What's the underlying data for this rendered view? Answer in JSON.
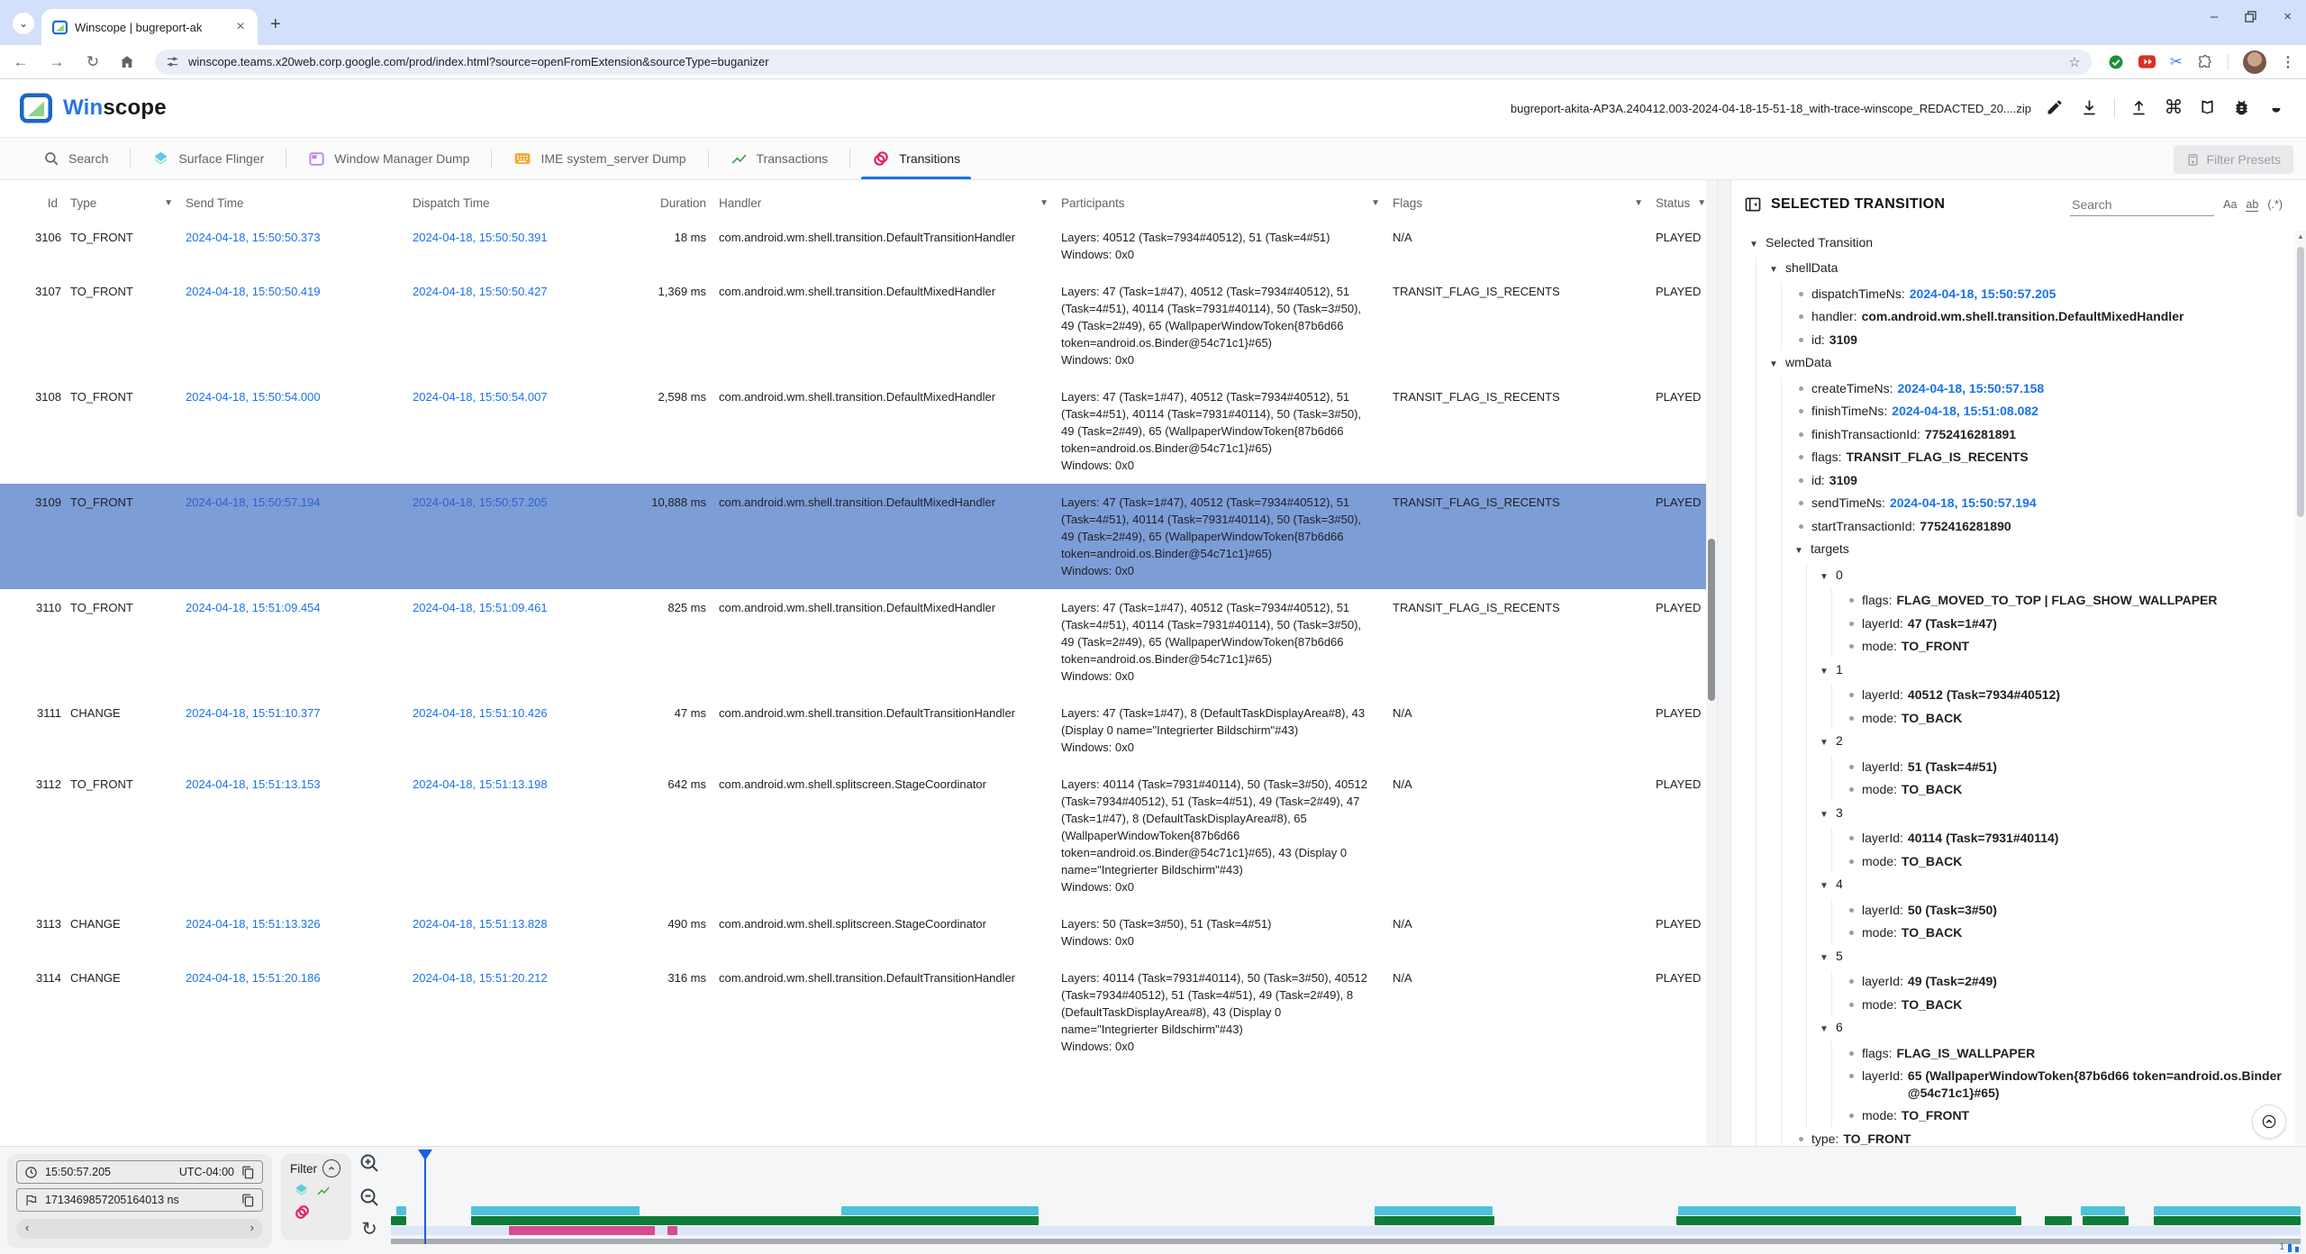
{
  "browser": {
    "tab_title": "Winscope | bugreport-ak",
    "url": "winscope.teams.x20web.corp.google.com/prod/index.html?source=openFromExtension&sourceType=buganizer"
  },
  "app_header": {
    "name_win": "Win",
    "name_scope": "scope",
    "file_name": "bugreport-akita-AP3A.240412.003-2024-04-18-15-51-18_with-trace-winscope_REDACTED_20....zip"
  },
  "trace_tabs": {
    "items": [
      {
        "label": "Search"
      },
      {
        "label": "Surface Flinger"
      },
      {
        "label": "Window Manager Dump"
      },
      {
        "label": "IME system_server Dump"
      },
      {
        "label": "Transactions"
      },
      {
        "label": "Transitions"
      }
    ],
    "filter_presets": "Filter Presets"
  },
  "table": {
    "headers": {
      "id": "Id",
      "type": "Type",
      "send_time": "Send Time",
      "dispatch_time": "Dispatch Time",
      "duration": "Duration",
      "handler": "Handler",
      "participants": "Participants",
      "flags": "Flags",
      "status": "Status"
    },
    "rows": [
      {
        "id": "3106",
        "type": "TO_FRONT",
        "send_time": "2024-04-18, 15:50:50.373",
        "dispatch_time": "2024-04-18, 15:50:50.391",
        "duration": "18 ms",
        "handler": "com.android.wm.shell.transition.DefaultTransitionHandler",
        "participants": "Layers: 40512 (Task=7934#40512), 51 (Task=4#51)\nWindows: 0x0",
        "flags": "N/A",
        "status": "PLAYED"
      },
      {
        "id": "3107",
        "type": "TO_FRONT",
        "send_time": "2024-04-18, 15:50:50.419",
        "dispatch_time": "2024-04-18, 15:50:50.427",
        "duration": "1,369 ms",
        "handler": "com.android.wm.shell.transition.DefaultMixedHandler",
        "participants": "Layers: 47 (Task=1#47), 40512 (Task=7934#40512), 51 (Task=4#51), 40114 (Task=7931#40114), 50 (Task=3#50), 49 (Task=2#49), 65 (WallpaperWindowToken{87b6d66 token=android.os.Binder@54c71c1}#65)\nWindows: 0x0",
        "flags": "TRANSIT_FLAG_IS_RECENTS",
        "status": "PLAYED"
      },
      {
        "id": "3108",
        "type": "TO_FRONT",
        "send_time": "2024-04-18, 15:50:54.000",
        "dispatch_time": "2024-04-18, 15:50:54.007",
        "duration": "2,598 ms",
        "handler": "com.android.wm.shell.transition.DefaultMixedHandler",
        "participants": "Layers: 47 (Task=1#47), 40512 (Task=7934#40512), 51 (Task=4#51), 40114 (Task=7931#40114), 50 (Task=3#50), 49 (Task=2#49), 65 (WallpaperWindowToken{87b6d66 token=android.os.Binder@54c71c1}#65)\nWindows: 0x0",
        "flags": "TRANSIT_FLAG_IS_RECENTS",
        "status": "PLAYED"
      },
      {
        "id": "3109",
        "type": "TO_FRONT",
        "send_time": "2024-04-18, 15:50:57.194",
        "dispatch_time": "2024-04-18, 15:50:57.205",
        "duration": "10,888 ms",
        "handler": "com.android.wm.shell.transition.DefaultMixedHandler",
        "participants": "Layers: 47 (Task=1#47), 40512 (Task=7934#40512), 51 (Task=4#51), 40114 (Task=7931#40114), 50 (Task=3#50), 49 (Task=2#49), 65 (WallpaperWindowToken{87b6d66 token=android.os.Binder@54c71c1}#65)\nWindows: 0x0",
        "flags": "TRANSIT_FLAG_IS_RECENTS",
        "status": "PLAYED",
        "selected": true
      },
      {
        "id": "3110",
        "type": "TO_FRONT",
        "send_time": "2024-04-18, 15:51:09.454",
        "dispatch_time": "2024-04-18, 15:51:09.461",
        "duration": "825 ms",
        "handler": "com.android.wm.shell.transition.DefaultMixedHandler",
        "participants": "Layers: 47 (Task=1#47), 40512 (Task=7934#40512), 51 (Task=4#51), 40114 (Task=7931#40114), 50 (Task=3#50), 49 (Task=2#49), 65 (WallpaperWindowToken{87b6d66 token=android.os.Binder@54c71c1}#65)\nWindows: 0x0",
        "flags": "TRANSIT_FLAG_IS_RECENTS",
        "status": "PLAYED"
      },
      {
        "id": "3111",
        "type": "CHANGE",
        "send_time": "2024-04-18, 15:51:10.377",
        "dispatch_time": "2024-04-18, 15:51:10.426",
        "duration": "47 ms",
        "handler": "com.android.wm.shell.transition.DefaultTransitionHandler",
        "participants": "Layers: 47 (Task=1#47), 8 (DefaultTaskDisplayArea#8), 43 (Display 0 name=\"Integrierter Bildschirm\"#43)\nWindows: 0x0",
        "flags": "N/A",
        "status": "PLAYED"
      },
      {
        "id": "3112",
        "type": "TO_FRONT",
        "send_time": "2024-04-18, 15:51:13.153",
        "dispatch_time": "2024-04-18, 15:51:13.198",
        "duration": "642 ms",
        "handler": "com.android.wm.shell.splitscreen.StageCoordinator",
        "participants": "Layers: 40114 (Task=7931#40114), 50 (Task=3#50), 40512 (Task=7934#40512), 51 (Task=4#51), 49 (Task=2#49), 47 (Task=1#47), 8 (DefaultTaskDisplayArea#8), 65 (WallpaperWindowToken{87b6d66 token=android.os.Binder@54c71c1}#65), 43 (Display 0 name=\"Integrierter Bildschirm\"#43)\nWindows: 0x0",
        "flags": "N/A",
        "status": "PLAYED"
      },
      {
        "id": "3113",
        "type": "CHANGE",
        "send_time": "2024-04-18, 15:51:13.326",
        "dispatch_time": "2024-04-18, 15:51:13.828",
        "duration": "490 ms",
        "handler": "com.android.wm.shell.splitscreen.StageCoordinator",
        "participants": "Layers: 50 (Task=3#50), 51 (Task=4#51)\nWindows: 0x0",
        "flags": "N/A",
        "status": "PLAYED"
      },
      {
        "id": "3114",
        "type": "CHANGE",
        "send_time": "2024-04-18, 15:51:20.186",
        "dispatch_time": "2024-04-18, 15:51:20.212",
        "duration": "316 ms",
        "handler": "com.android.wm.shell.transition.DefaultTransitionHandler",
        "participants": "Layers: 40114 (Task=7931#40114), 50 (Task=3#50), 40512 (Task=7934#40512), 51 (Task=4#51), 49 (Task=2#49), 8 (DefaultTaskDisplayArea#8), 43 (Display 0 name=\"Integrierter Bildschirm\"#43)\nWindows: 0x0",
        "flags": "N/A",
        "status": "PLAYED"
      }
    ]
  },
  "panel": {
    "title": "SELECTED TRANSITION",
    "search_placeholder": "Search",
    "match_case": "Aa",
    "match_word": "ab",
    "regex": "(.*)",
    "tree": [
      {
        "label": "Selected Transition"
      },
      {
        "label": "shellData"
      },
      {
        "key": "dispatchTimeNs:",
        "value": "2024-04-18, 15:50:57.205",
        "blue": true
      },
      {
        "key": "handler:",
        "value": "com.android.wm.shell.transition.DefaultMixedHandler"
      },
      {
        "key": "id:",
        "value": "3109"
      },
      {
        "label": "wmData"
      },
      {
        "key": "createTimeNs:",
        "value": "2024-04-18, 15:50:57.158",
        "blue": true
      },
      {
        "key": "finishTimeNs:",
        "value": "2024-04-18, 15:51:08.082",
        "blue": true
      },
      {
        "key": "finishTransactionId:",
        "value": "7752416281891"
      },
      {
        "key": "flags:",
        "value": "TRANSIT_FLAG_IS_RECENTS"
      },
      {
        "key": "id:",
        "value": "3109"
      },
      {
        "key": "sendTimeNs:",
        "value": "2024-04-18, 15:50:57.194",
        "blue": true
      },
      {
        "key": "startTransactionId:",
        "value": "7752416281890"
      },
      {
        "label": "targets"
      },
      {
        "label": "0"
      },
      {
        "key": "flags:",
        "value": "FLAG_MOVED_TO_TOP | FLAG_SHOW_WALLPAPER"
      },
      {
        "key": "layerId:",
        "value": "47 (Task=1#47)"
      },
      {
        "key": "mode:",
        "value": "TO_FRONT"
      },
      {
        "label": "1"
      },
      {
        "key": "layerId:",
        "value": "40512 (Task=7934#40512)"
      },
      {
        "key": "mode:",
        "value": "TO_BACK"
      },
      {
        "label": "2"
      },
      {
        "key": "layerId:",
        "value": "51 (Task=4#51)"
      },
      {
        "key": "mode:",
        "value": "TO_BACK"
      },
      {
        "label": "3"
      },
      {
        "key": "layerId:",
        "value": "40114 (Task=7931#40114)"
      },
      {
        "key": "mode:",
        "value": "TO_BACK"
      },
      {
        "label": "4"
      },
      {
        "key": "layerId:",
        "value": "50 (Task=3#50)"
      },
      {
        "key": "mode:",
        "value": "TO_BACK"
      },
      {
        "label": "5"
      },
      {
        "key": "layerId:",
        "value": "49 (Task=2#49)"
      },
      {
        "key": "mode:",
        "value": "TO_BACK"
      },
      {
        "label": "6"
      },
      {
        "key": "flags:",
        "value": "FLAG_IS_WALLPAPER"
      },
      {
        "key": "layerId:",
        "value": "65 (WallpaperWindowToken{87b6d66 token=android.os.Binder @54c71c1}#65)"
      },
      {
        "key": "mode:",
        "value": "TO_FRONT"
      },
      {
        "key": "type:",
        "value": "TO_FRONT"
      }
    ]
  },
  "timeline": {
    "time": "15:50:57.205",
    "utc": "UTC-04:00",
    "ns": "1713469857205164013 ns",
    "filter_label": "Filter",
    "corner_indicator": "1",
    "cursor_frac": 0.0174,
    "tracks": [
      {
        "name": "sf",
        "color": "#4ec3d8",
        "segments": [
          [
            0.003,
            0.008
          ],
          [
            0.042,
            0.13
          ],
          [
            0.236,
            0.339
          ],
          [
            0.515,
            0.577
          ],
          [
            0.674,
            0.851
          ],
          [
            0.885,
            0.908
          ],
          [
            0.923,
            1.0
          ]
        ]
      },
      {
        "name": "transactions",
        "color": "#0e7c37",
        "segments": [
          [
            0.0,
            0.008
          ],
          [
            0.042,
            0.339
          ],
          [
            0.515,
            0.578
          ],
          [
            0.673,
            0.854
          ],
          [
            0.866,
            0.88
          ],
          [
            0.886,
            0.91
          ],
          [
            0.923,
            1.0
          ]
        ]
      },
      {
        "name": "transitions",
        "color": "#d84a8f",
        "segments": [
          [
            0.062,
            0.138
          ],
          [
            0.145,
            0.15
          ]
        ]
      }
    ]
  },
  "colors": {
    "accent_blue": "#1a73e8",
    "selected_row": "#7d9dd6",
    "status_green": "#1e8e3e",
    "sf_cyan": "#4ec3d8",
    "transactions_green": "#0e7c37",
    "transitions_pink": "#d84a8f",
    "tab_pink": "#e91e63",
    "cursor_blue": "#1a5ce8"
  }
}
